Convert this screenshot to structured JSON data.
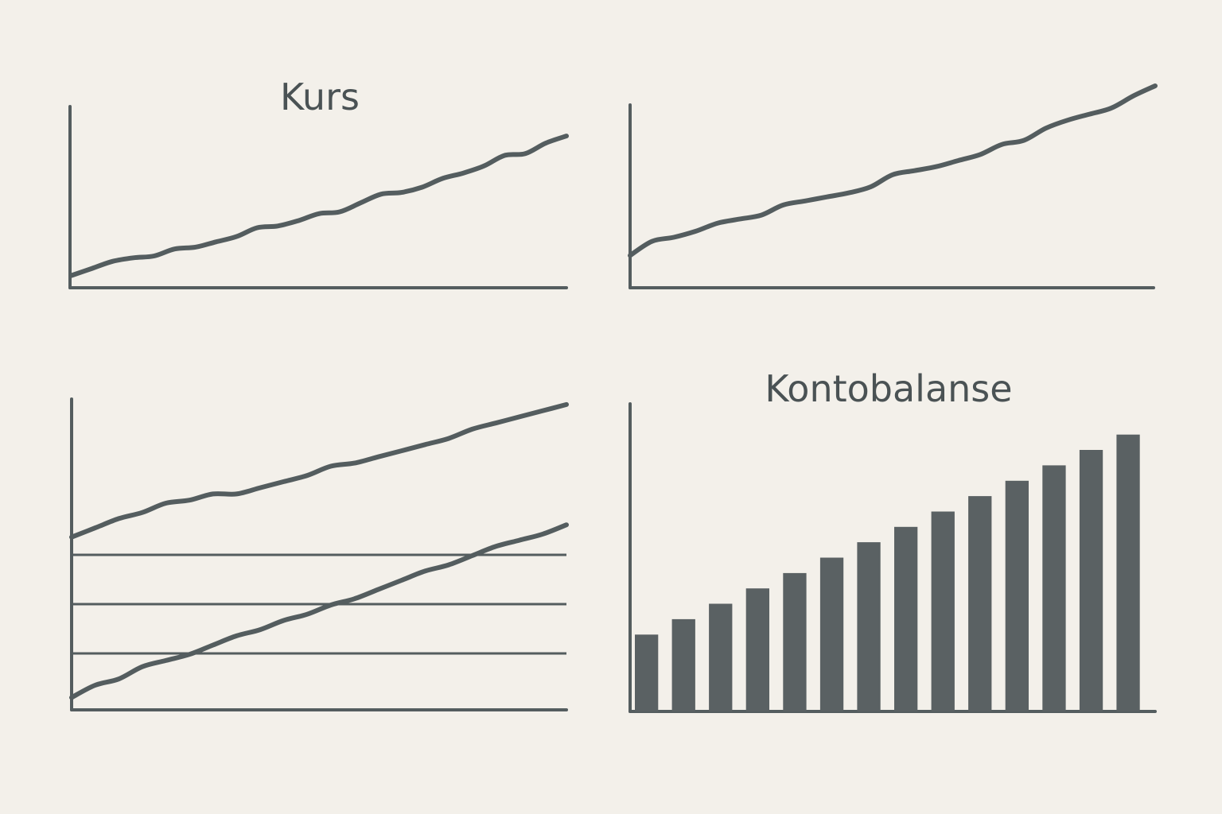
{
  "colors": {
    "background": "#f3f0ea",
    "ink": "#545d5f",
    "bar": "#5a6163"
  },
  "chart_data": [
    {
      "type": "line",
      "title": "Kurs",
      "grid": false,
      "ylim": [
        0,
        10
      ],
      "series": [
        {
          "values": [
            0.7,
            1.1,
            1.5,
            1.7,
            1.8,
            2.2,
            2.3,
            2.6,
            2.9,
            3.4,
            3.5,
            3.8,
            4.2,
            4.3,
            4.8,
            5.3,
            5.4,
            5.7,
            6.2,
            6.5,
            6.9,
            7.5,
            7.6,
            8.2,
            8.6
          ]
        }
      ]
    },
    {
      "type": "line",
      "title": "",
      "grid": false,
      "ylim": [
        0,
        10
      ],
      "series": [
        {
          "values": [
            1.6,
            2.3,
            2.5,
            2.8,
            3.2,
            3.4,
            3.6,
            4.1,
            4.3,
            4.5,
            4.7,
            5.0,
            5.6,
            5.8,
            6.0,
            6.3,
            6.6,
            7.1,
            7.3,
            7.9,
            8.3,
            8.6,
            8.9,
            9.5,
            10.0
          ]
        }
      ]
    },
    {
      "type": "line",
      "title": "",
      "grid": true,
      "ylim": [
        0,
        10
      ],
      "series": [
        {
          "values": [
            5.6,
            5.9,
            6.2,
            6.4,
            6.7,
            6.8,
            7.0,
            7.0,
            7.2,
            7.4,
            7.6,
            7.9,
            8.0,
            8.2,
            8.4,
            8.6,
            8.8,
            9.1,
            9.3,
            9.5,
            9.7,
            9.9
          ]
        },
        {
          "values": [
            0.4,
            0.8,
            1.0,
            1.4,
            1.6,
            1.8,
            2.1,
            2.4,
            2.6,
            2.9,
            3.1,
            3.4,
            3.6,
            3.9,
            4.2,
            4.5,
            4.7,
            5.0,
            5.3,
            5.5,
            5.7,
            6.0
          ]
        }
      ]
    },
    {
      "type": "bar",
      "title": "Kontobalanse",
      "grid": false,
      "ylim": [
        0,
        10
      ],
      "categories": [
        "",
        "",
        "",
        "",
        "",
        "",
        "",
        "",
        "",
        "",
        "",
        "",
        "",
        ""
      ],
      "values": [
        2.5,
        3.0,
        3.5,
        4.0,
        4.5,
        5.0,
        5.5,
        6.0,
        6.5,
        7.0,
        7.5,
        8.0,
        8.5,
        9.0
      ]
    }
  ]
}
